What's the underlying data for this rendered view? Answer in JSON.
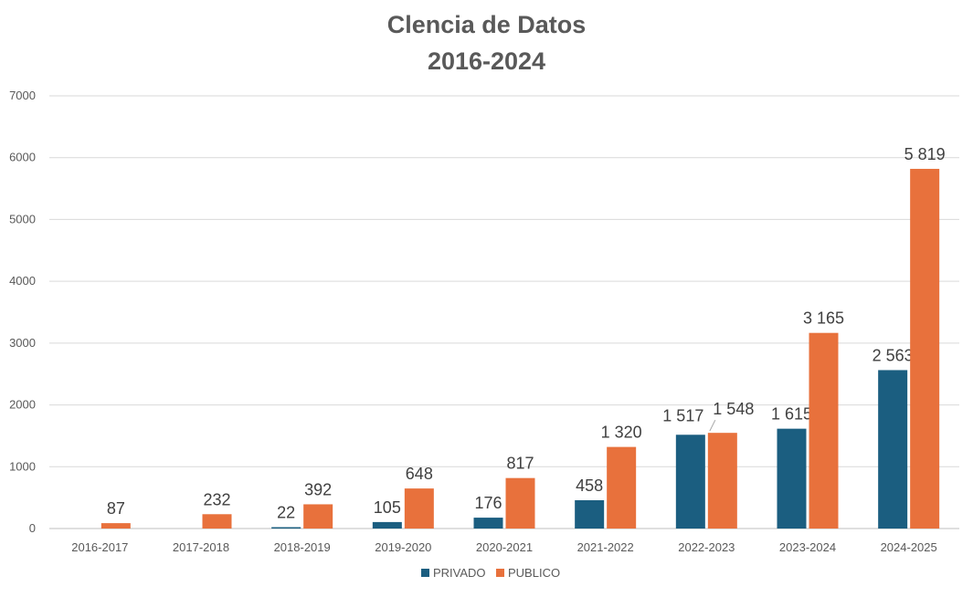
{
  "chart_data": {
    "type": "bar",
    "title": [
      "Clencia de Datos",
      "2016-2024"
    ],
    "categories": [
      "2016-2017",
      "2017-2018",
      "2018-2019",
      "2019-2020",
      "2020-2021",
      "2021-2022",
      "2022-2023",
      "2023-2024",
      "2024-2025"
    ],
    "series": [
      {
        "name": "PRIVADO",
        "color": "#1b5e80",
        "values": [
          null,
          null,
          22,
          105,
          176,
          458,
          1517,
          1615,
          2563
        ],
        "labels": [
          "",
          "",
          "22",
          "105",
          "176",
          "458",
          "1 517",
          "1 615",
          "2 563"
        ]
      },
      {
        "name": "PUBLICO",
        "color": "#e8713c",
        "values": [
          87,
          232,
          392,
          648,
          817,
          1320,
          1548,
          3165,
          5819
        ],
        "labels": [
          "87",
          "232",
          "392",
          "648",
          "817",
          "1 320",
          "1 548",
          "3 165",
          "5 819"
        ]
      }
    ],
    "ylim": [
      0,
      7000
    ],
    "yticks": [
      "0",
      "1000",
      "2000",
      "3000",
      "4000",
      "5000",
      "6000",
      "7000"
    ],
    "grid": true,
    "legend_position": "bottom"
  }
}
